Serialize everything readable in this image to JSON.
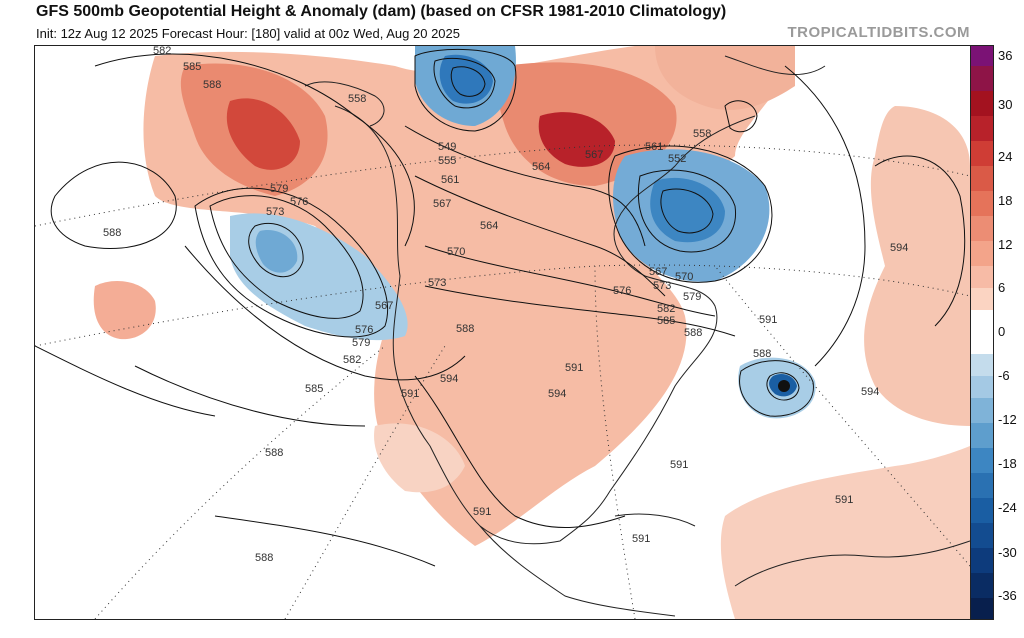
{
  "header": {
    "title": "GFS 500mb Geopotential Height & Anomaly (dam) (based on CFSR 1981-2010 Climatology)",
    "subtitle": "Init: 12z Aug 12 2025   Forecast Hour: [180]   valid at 00z Wed, Aug 20 2025",
    "watermark": "TROPICALTIDBITS.COM"
  },
  "colorbar": {
    "labels": [
      "36",
      "30",
      "24",
      "18",
      "12",
      "6",
      "0",
      "-6",
      "-12",
      "-18",
      "-24",
      "-30",
      "-36"
    ],
    "colors": {
      "max": "#7b1275",
      "deep_red": "#a3121f",
      "red": "#cf3d35",
      "orange_red": "#e5735a",
      "salmon": "#f3a48a",
      "light_salmon": "#fbd4c2",
      "white": "#ffffff",
      "light_blue": "#c4dcec",
      "blue": "#7fb3d8",
      "mid_blue": "#3d86c2",
      "deep_blue": "#1a5ea3",
      "navy": "#0d3b7c",
      "dark_navy": "#081f4d"
    }
  },
  "contour_labels": [
    {
      "id": "582-nw",
      "text": "582"
    },
    {
      "id": "585-nw",
      "text": "585"
    },
    {
      "id": "588-nw",
      "text": "588"
    },
    {
      "id": "558-ak",
      "text": "558"
    },
    {
      "id": "549",
      "text": "549"
    },
    {
      "id": "555",
      "text": "555"
    },
    {
      "id": "561-w",
      "text": "561"
    },
    {
      "id": "567-w",
      "text": "567"
    },
    {
      "id": "564-w",
      "text": "564"
    },
    {
      "id": "570-w",
      "text": "570"
    },
    {
      "id": "573-w",
      "text": "573"
    },
    {
      "id": "579-pac",
      "text": "579"
    },
    {
      "id": "576-pac",
      "text": "576"
    },
    {
      "id": "573-pac",
      "text": "573"
    },
    {
      "id": "588-pac-w",
      "text": "588"
    },
    {
      "id": "567-pac",
      "text": "567"
    },
    {
      "id": "576-pac2",
      "text": "576"
    },
    {
      "id": "579-pac2",
      "text": "579"
    },
    {
      "id": "582-pac",
      "text": "582"
    },
    {
      "id": "585-pac",
      "text": "585"
    },
    {
      "id": "588-pac-s",
      "text": "588"
    },
    {
      "id": "588-sw",
      "text": "588"
    },
    {
      "id": "588-us",
      "text": "588"
    },
    {
      "id": "591-w",
      "text": "591"
    },
    {
      "id": "594-us",
      "text": "594"
    },
    {
      "id": "591-c",
      "text": "591"
    },
    {
      "id": "594-c",
      "text": "594"
    },
    {
      "id": "564-c",
      "text": "564"
    },
    {
      "id": "567-hb",
      "text": "567"
    },
    {
      "id": "561-e",
      "text": "561"
    },
    {
      "id": "558-e",
      "text": "558"
    },
    {
      "id": "552",
      "text": "552"
    },
    {
      "id": "567-e",
      "text": "567"
    },
    {
      "id": "570-e",
      "text": "570"
    },
    {
      "id": "573-e",
      "text": "573"
    },
    {
      "id": "576-e",
      "text": "576"
    },
    {
      "id": "579-e",
      "text": "579"
    },
    {
      "id": "582-e",
      "text": "582"
    },
    {
      "id": "585-e",
      "text": "585"
    },
    {
      "id": "588-e",
      "text": "588"
    },
    {
      "id": "591-atl",
      "text": "591"
    },
    {
      "id": "588-atl",
      "text": "588"
    },
    {
      "id": "594-atl-n",
      "text": "594"
    },
    {
      "id": "594-atl-s",
      "text": "594"
    },
    {
      "id": "591-fl",
      "text": "591"
    },
    {
      "id": "591-carib",
      "text": "591"
    },
    {
      "id": "591-mex",
      "text": "591"
    },
    {
      "id": "591-gulf",
      "text": "591"
    }
  ]
}
